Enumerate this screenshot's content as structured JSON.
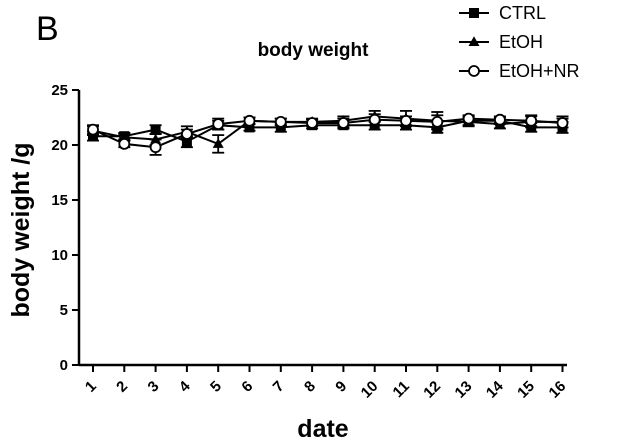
{
  "panel_label": "B",
  "chart_data": {
    "type": "line",
    "title": "body weight",
    "xlabel": "date",
    "ylabel": "body weight /g",
    "categories": [
      "1",
      "2",
      "3",
      "4",
      "5",
      "6",
      "7",
      "8",
      "9",
      "10",
      "11",
      "12",
      "13",
      "14",
      "15",
      "16"
    ],
    "ylim": [
      0,
      25
    ],
    "yticks": [
      0,
      5,
      10,
      15,
      20,
      25
    ],
    "grid": false,
    "legend_position": "top-right",
    "series": [
      {
        "name": "CTRL",
        "marker": "filled-square",
        "values": [
          20.8,
          20.8,
          21.4,
          20.3,
          21.8,
          21.6,
          21.6,
          21.8,
          21.8,
          21.8,
          21.8,
          21.6,
          22.2,
          22.2,
          21.6,
          21.6
        ],
        "errors": [
          0.4,
          0.3,
          0.4,
          0.5,
          0.4,
          0.3,
          0.4,
          0.3,
          0.3,
          0.4,
          0.4,
          0.5,
          0.4,
          0.3,
          0.4,
          0.5
        ]
      },
      {
        "name": "EtOH",
        "marker": "filled-triangle",
        "values": [
          21.3,
          20.7,
          20.5,
          21.2,
          20.1,
          22.2,
          22.1,
          22.1,
          22.2,
          22.6,
          22.4,
          22.2,
          22.1,
          21.9,
          22.1,
          22.1
        ],
        "errors": [
          0.4,
          0.3,
          0.5,
          0.5,
          0.8,
          0.3,
          0.3,
          0.3,
          0.4,
          0.5,
          0.7,
          0.8,
          0.4,
          0.4,
          0.5,
          0.5
        ]
      },
      {
        "name": "EtOH+NR",
        "marker": "open-circle",
        "values": [
          21.4,
          20.1,
          19.8,
          21.0,
          21.9,
          22.2,
          22.1,
          22.0,
          22.0,
          22.3,
          22.2,
          22.1,
          22.4,
          22.3,
          22.2,
          22.0
        ],
        "errors": [
          0.4,
          0.3,
          0.7,
          0.4,
          0.5,
          0.3,
          0.3,
          0.3,
          0.4,
          0.5,
          0.4,
          0.6,
          0.3,
          0.3,
          0.5,
          0.4
        ]
      }
    ]
  }
}
